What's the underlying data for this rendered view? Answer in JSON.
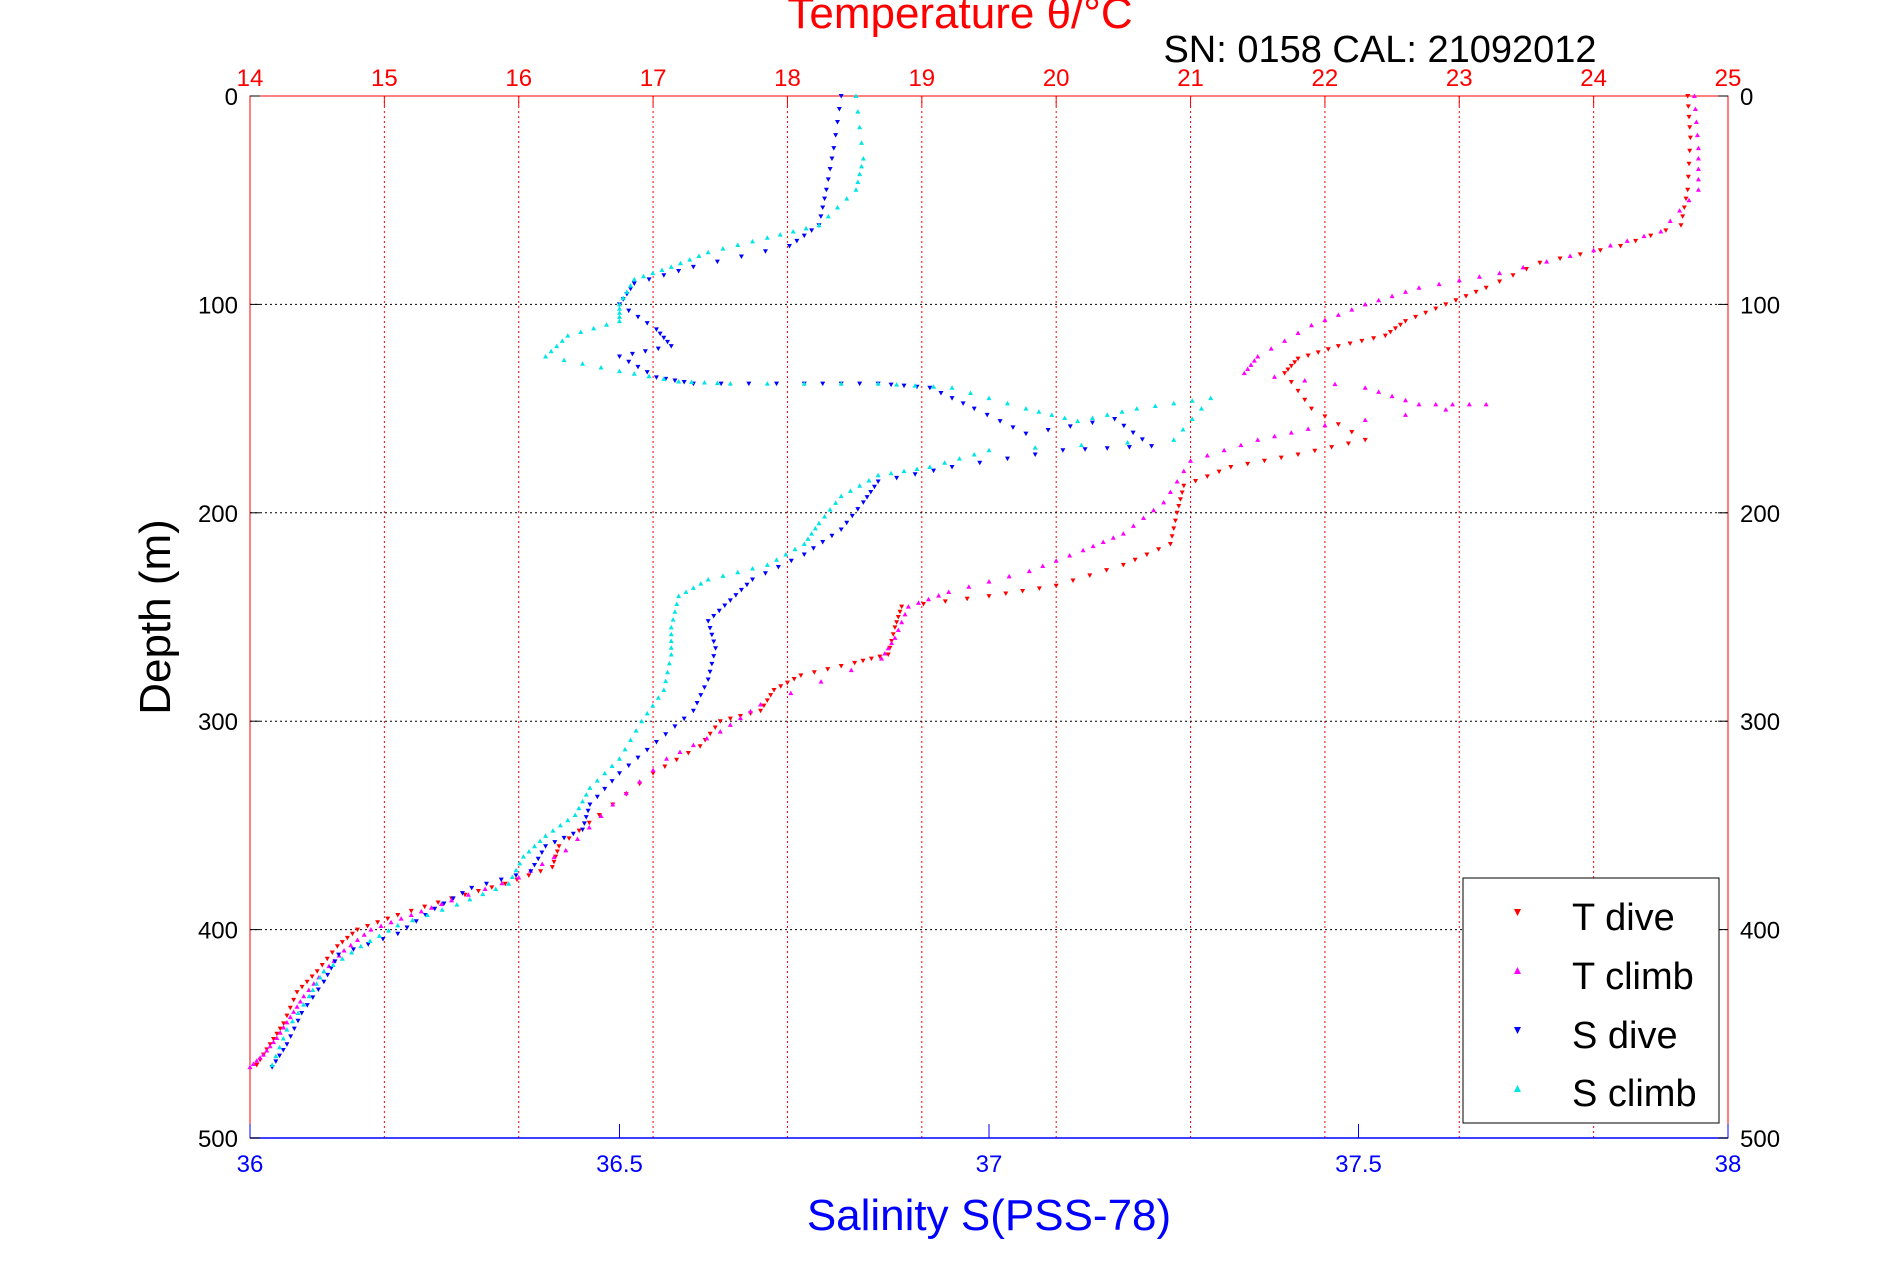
{
  "chart_data": {
    "type": "scatter",
    "title": "Temperature θ/°C",
    "subtitle": "SN: 0158  CAL: 21092012",
    "ylabel": "Depth (m)",
    "xlabel_bottom": "Salinity S(PSS-78)",
    "y_axis": {
      "range": [
        0,
        500
      ],
      "reversed": true,
      "ticks": [
        "0",
        "100",
        "200",
        "300",
        "400",
        "500"
      ]
    },
    "x_top": {
      "quantity": "Temperature",
      "range": [
        14,
        25
      ],
      "ticks": [
        "14",
        "15",
        "16",
        "17",
        "18",
        "19",
        "20",
        "21",
        "22",
        "23",
        "24",
        "25"
      ]
    },
    "x_bottom": {
      "quantity": "Salinity",
      "range": [
        36,
        38
      ],
      "ticks": [
        "36",
        "36.5",
        "37",
        "37.5",
        "38"
      ]
    },
    "grid": true,
    "legend_position": "bottom-right",
    "colors": {
      "title": "#ff0000",
      "salinity_axis": "#0000ff",
      "T dive": "#ff0000",
      "T climb": "#ff00ff",
      "S dive": "#0000ff",
      "S climb": "#00e5e5"
    },
    "series": [
      {
        "name": "T dive",
        "axis": "temperature",
        "marker": "triangle-down",
        "points": [
          [
            24.7,
            0
          ],
          [
            24.72,
            20
          ],
          [
            24.7,
            45
          ],
          [
            24.65,
            62
          ],
          [
            24.2,
            72
          ],
          [
            23.6,
            80
          ],
          [
            23.2,
            92
          ],
          [
            22.9,
            100
          ],
          [
            22.6,
            108
          ],
          [
            22.45,
            115
          ],
          [
            22.1,
            120
          ],
          [
            21.8,
            126
          ],
          [
            21.7,
            133
          ],
          [
            21.9,
            150
          ],
          [
            22.3,
            165
          ],
          [
            21.8,
            172
          ],
          [
            21.3,
            178
          ],
          [
            20.95,
            187
          ],
          [
            20.9,
            200
          ],
          [
            20.85,
            215
          ],
          [
            20.5,
            225
          ],
          [
            20.0,
            235
          ],
          [
            19.5,
            240
          ],
          [
            18.85,
            245
          ],
          [
            18.8,
            255
          ],
          [
            18.75,
            268
          ],
          [
            18.5,
            272
          ],
          [
            18.1,
            278
          ],
          [
            17.9,
            285
          ],
          [
            17.8,
            295
          ],
          [
            17.5,
            300
          ],
          [
            17.35,
            312
          ],
          [
            17.0,
            325
          ],
          [
            16.6,
            345
          ],
          [
            16.3,
            360
          ],
          [
            16.25,
            370
          ],
          [
            15.9,
            378
          ],
          [
            15.5,
            385
          ],
          [
            15.1,
            393
          ],
          [
            14.8,
            400
          ],
          [
            14.65,
            408
          ],
          [
            14.5,
            420
          ],
          [
            14.35,
            430
          ],
          [
            14.25,
            445
          ],
          [
            14.15,
            455
          ],
          [
            14.05,
            465
          ]
        ]
      },
      {
        "name": "T climb",
        "axis": "temperature",
        "marker": "triangle-up",
        "points": [
          [
            24.75,
            0
          ],
          [
            24.78,
            25
          ],
          [
            24.78,
            45
          ],
          [
            24.5,
            65
          ],
          [
            24.0,
            74
          ],
          [
            23.3,
            85
          ],
          [
            22.7,
            92
          ],
          [
            22.3,
            100
          ],
          [
            21.9,
            110
          ],
          [
            21.5,
            125
          ],
          [
            21.4,
            133
          ],
          [
            22.3,
            140
          ],
          [
            22.7,
            148
          ],
          [
            23.2,
            148
          ],
          [
            22.0,
            158
          ],
          [
            21.5,
            165
          ],
          [
            21.0,
            175
          ],
          [
            20.8,
            195
          ],
          [
            20.5,
            210
          ],
          [
            20.2,
            218
          ],
          [
            19.8,
            228
          ],
          [
            19.2,
            238
          ],
          [
            18.9,
            245
          ],
          [
            18.8,
            260
          ],
          [
            18.7,
            270
          ],
          [
            17.8,
            292
          ],
          [
            17.5,
            305
          ],
          [
            17.1,
            318
          ],
          [
            16.7,
            340
          ],
          [
            16.35,
            362
          ],
          [
            16.0,
            375
          ],
          [
            15.5,
            386
          ],
          [
            15.2,
            393
          ],
          [
            14.9,
            400
          ],
          [
            14.7,
            410
          ],
          [
            14.55,
            420
          ],
          [
            14.4,
            432
          ],
          [
            14.3,
            442
          ],
          [
            14.2,
            452
          ],
          [
            14.1,
            460
          ],
          [
            14.0,
            466
          ]
        ]
      },
      {
        "name": "S dive",
        "axis": "salinity",
        "marker": "triangle-down",
        "points": [
          [
            36.8,
            0
          ],
          [
            36.79,
            25
          ],
          [
            36.78,
            45
          ],
          [
            36.77,
            62
          ],
          [
            36.73,
            72
          ],
          [
            36.6,
            82
          ],
          [
            36.52,
            90
          ],
          [
            36.5,
            100
          ],
          [
            36.55,
            112
          ],
          [
            36.57,
            120
          ],
          [
            36.5,
            125
          ],
          [
            36.55,
            135
          ],
          [
            36.6,
            138
          ],
          [
            36.75,
            138
          ],
          [
            36.85,
            138
          ],
          [
            36.92,
            140
          ],
          [
            36.98,
            150
          ],
          [
            37.05,
            162
          ],
          [
            37.17,
            155
          ],
          [
            37.22,
            168
          ],
          [
            37.1,
            170
          ],
          [
            36.95,
            178
          ],
          [
            36.85,
            185
          ],
          [
            36.83,
            195
          ],
          [
            36.8,
            208
          ],
          [
            36.75,
            220
          ],
          [
            36.68,
            232
          ],
          [
            36.65,
            242
          ],
          [
            36.62,
            252
          ],
          [
            36.63,
            265
          ],
          [
            36.62,
            280
          ],
          [
            36.6,
            295
          ],
          [
            36.55,
            310
          ],
          [
            36.5,
            325
          ],
          [
            36.46,
            340
          ],
          [
            36.45,
            352
          ],
          [
            36.4,
            360
          ],
          [
            36.38,
            372
          ],
          [
            36.3,
            380
          ],
          [
            36.25,
            390
          ],
          [
            36.2,
            402
          ],
          [
            36.12,
            412
          ],
          [
            36.1,
            425
          ],
          [
            36.07,
            440
          ],
          [
            36.05,
            455
          ],
          [
            36.03,
            466
          ]
        ]
      },
      {
        "name": "S climb",
        "axis": "salinity",
        "marker": "triangle-up",
        "points": [
          [
            36.82,
            0
          ],
          [
            36.83,
            30
          ],
          [
            36.82,
            45
          ],
          [
            36.77,
            62
          ],
          [
            36.7,
            68
          ],
          [
            36.62,
            75
          ],
          [
            36.57,
            82
          ],
          [
            36.52,
            88
          ],
          [
            36.5,
            100
          ],
          [
            36.5,
            108
          ],
          [
            36.43,
            115
          ],
          [
            36.4,
            125
          ],
          [
            36.5,
            132
          ],
          [
            36.58,
            137
          ],
          [
            36.65,
            138
          ],
          [
            36.85,
            138
          ],
          [
            36.95,
            140
          ],
          [
            37.05,
            150
          ],
          [
            37.12,
            156
          ],
          [
            37.2,
            150
          ],
          [
            37.3,
            145
          ],
          [
            37.25,
            165
          ],
          [
            37.0,
            170
          ],
          [
            36.92,
            178
          ],
          [
            36.85,
            182
          ],
          [
            36.8,
            192
          ],
          [
            36.77,
            205
          ],
          [
            36.75,
            215
          ],
          [
            36.7,
            225
          ],
          [
            36.62,
            232
          ],
          [
            36.58,
            240
          ],
          [
            36.57,
            255
          ],
          [
            36.57,
            268
          ],
          [
            36.56,
            285
          ],
          [
            36.53,
            300
          ],
          [
            36.5,
            318
          ],
          [
            36.46,
            332
          ],
          [
            36.44,
            345
          ],
          [
            36.4,
            355
          ],
          [
            36.37,
            365
          ],
          [
            36.35,
            378
          ],
          [
            36.28,
            388
          ],
          [
            36.2,
            398
          ],
          [
            36.15,
            408
          ],
          [
            36.1,
            420
          ],
          [
            36.08,
            432
          ],
          [
            36.05,
            448
          ],
          [
            36.03,
            465
          ]
        ]
      }
    ]
  }
}
